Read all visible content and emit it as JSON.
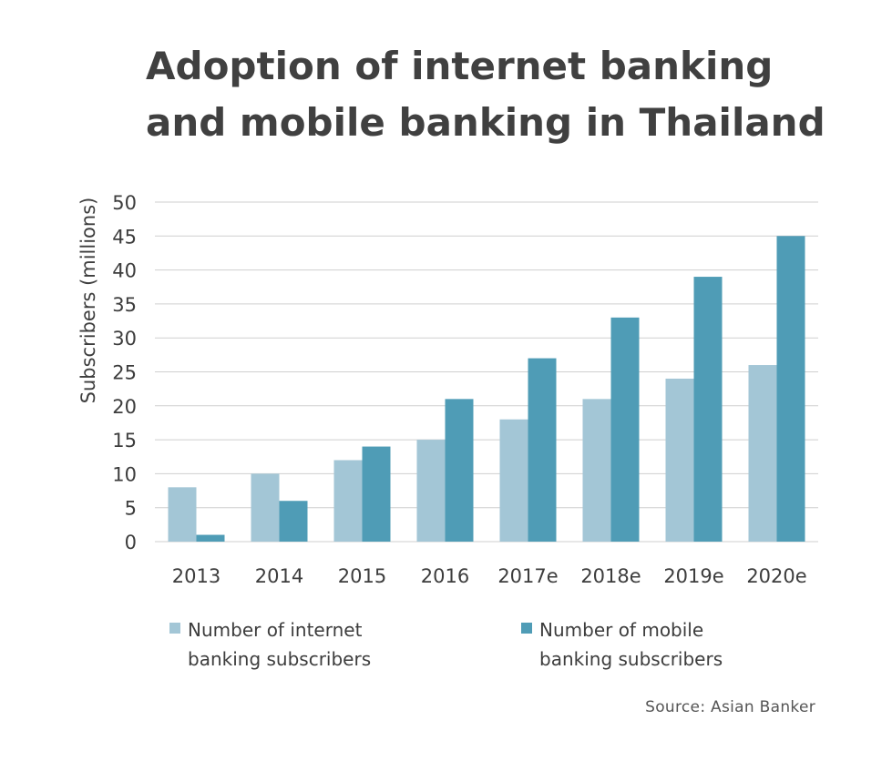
{
  "title_line1": "Adoption of internet banking",
  "title_line2": "and mobile banking in Thailand",
  "source": "Source: Asian Banker",
  "colors": {
    "internet": "#a3c6d6",
    "mobile": "#4f9cb6",
    "grid": "#cfcfcf",
    "text": "#3d3d3d"
  },
  "chart_data": {
    "type": "bar",
    "title": "Adoption of internet banking and mobile banking in Thailand",
    "xlabel": "",
    "ylabel": "Subscribers (millions)",
    "ylim": [
      0,
      50
    ],
    "yticks": [
      0,
      5,
      10,
      15,
      20,
      25,
      30,
      35,
      40,
      45,
      50
    ],
    "grid": true,
    "legend": "bottom",
    "categories": [
      "2013",
      "2014",
      "2015",
      "2016",
      "2017e",
      "2018e",
      "2019e",
      "2020e"
    ],
    "series": [
      {
        "name": "Number of internet banking subscribers",
        "values": [
          8,
          10,
          12,
          15,
          18,
          21,
          24,
          26
        ]
      },
      {
        "name": "Number of mobile banking subscribers",
        "values": [
          1,
          6,
          14,
          21,
          27,
          33,
          39,
          45
        ]
      }
    ]
  }
}
